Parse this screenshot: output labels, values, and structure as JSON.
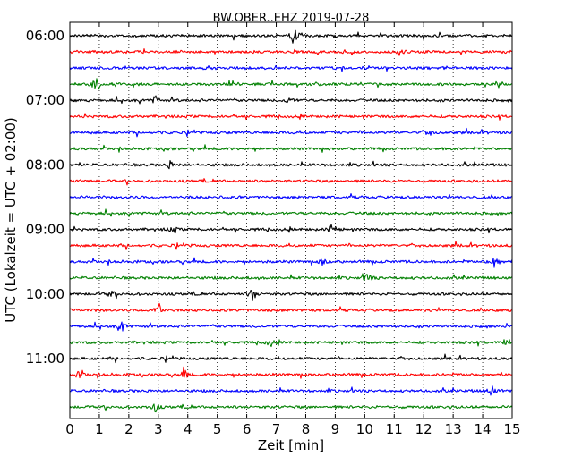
{
  "chart_data": {
    "type": "line",
    "title": "BW.OBER..EHZ 2019-07-28",
    "xlabel": "Zeit  [min]",
    "ylabel": "UTC (Lokalzeit = UTC + 02:00)",
    "xlim": [
      0,
      15
    ],
    "x_ticks": [
      "0",
      "1",
      "2",
      "3",
      "4",
      "5",
      "6",
      "7",
      "8",
      "9",
      "10",
      "11",
      "12",
      "13",
      "14",
      "15"
    ],
    "y_tick_labels": [
      "06:00",
      "07:00",
      "08:00",
      "09:00",
      "10:00",
      "11:00"
    ],
    "grid": "vertical dotted",
    "trace_interval_min": 15,
    "trace_start_times": [
      "06:00",
      "06:15",
      "06:30",
      "06:45",
      "07:00",
      "07:15",
      "07:30",
      "07:45",
      "08:00",
      "08:15",
      "08:30",
      "08:45",
      "09:00",
      "09:15",
      "09:30",
      "09:45",
      "10:00",
      "10:15",
      "10:30",
      "10:45",
      "11:00",
      "11:15",
      "11:30",
      "11:45"
    ],
    "trace_colors": [
      "#000000",
      "#ff0000",
      "#0000ff",
      "#008000"
    ],
    "events": [
      {
        "trace": 0,
        "minute": 7.6,
        "amplitude": 1.0
      },
      {
        "trace": 1,
        "minute": 11.2,
        "amplitude": 0.35
      },
      {
        "trace": 3,
        "minute": 0.9,
        "amplitude": 0.8
      },
      {
        "trace": 4,
        "minute": 7.4,
        "amplitude": 0.4
      },
      {
        "trace": 4,
        "minute": 2.9,
        "amplitude": 0.35
      },
      {
        "trace": 6,
        "minute": 12.2,
        "amplitude": 0.35
      },
      {
        "trace": 8,
        "minute": 3.4,
        "amplitude": 0.3
      },
      {
        "trace": 12,
        "minute": 3.5,
        "amplitude": 0.45
      },
      {
        "trace": 12,
        "minute": 8.9,
        "amplitude": 0.55
      },
      {
        "trace": 14,
        "minute": 8.6,
        "amplitude": 0.35
      },
      {
        "trace": 14,
        "minute": 14.4,
        "amplitude": 1.0
      },
      {
        "trace": 15,
        "minute": 10.1,
        "amplitude": 0.45
      },
      {
        "trace": 16,
        "minute": 6.2,
        "amplitude": 0.6
      },
      {
        "trace": 16,
        "minute": 1.4,
        "amplitude": 0.3
      },
      {
        "trace": 17,
        "minute": 3.0,
        "amplitude": 0.9
      },
      {
        "trace": 18,
        "minute": 1.8,
        "amplitude": 0.55
      },
      {
        "trace": 19,
        "minute": 14.8,
        "amplitude": 0.55
      },
      {
        "trace": 19,
        "minute": 6.8,
        "amplitude": 0.3
      },
      {
        "trace": 21,
        "minute": 0.3,
        "amplitude": 0.35
      },
      {
        "trace": 21,
        "minute": 3.9,
        "amplitude": 0.5
      },
      {
        "trace": 22,
        "minute": 14.3,
        "amplitude": 0.55
      },
      {
        "trace": 23,
        "minute": 2.9,
        "amplitude": 0.4
      }
    ]
  }
}
